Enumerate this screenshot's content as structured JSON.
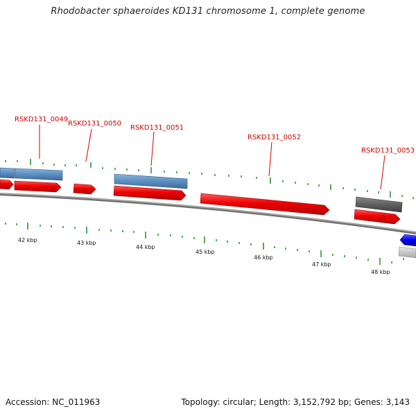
{
  "title": "Rhodobacter sphaeroides KD131 chromosome 1, complete genome",
  "footer": {
    "accession": "Accession: NC_011963",
    "summary": "Topology: circular; Length: 3,152,792 bp; Genes: 3,143"
  },
  "gene_labels": [
    "RSKD131_0049",
    "RSKD131_0050",
    "RSKD131_0051",
    "RSKD131_0052",
    "RSKD131_0053"
  ],
  "scale_labels": [
    "42 kbp",
    "43 kbp",
    "44 kbp",
    "45 kbp",
    "46 kbp",
    "47 kbp",
    "48 kbp"
  ],
  "colors": {
    "label_red": "#cc0000",
    "gene_red": "#ee0000",
    "gene_steelblue": "#5b8ec2",
    "gene_grey": "#5f5f5f",
    "gene_blue": "#0000ee",
    "backbone": "#808080",
    "tick_green": "#1f8a1f"
  }
}
